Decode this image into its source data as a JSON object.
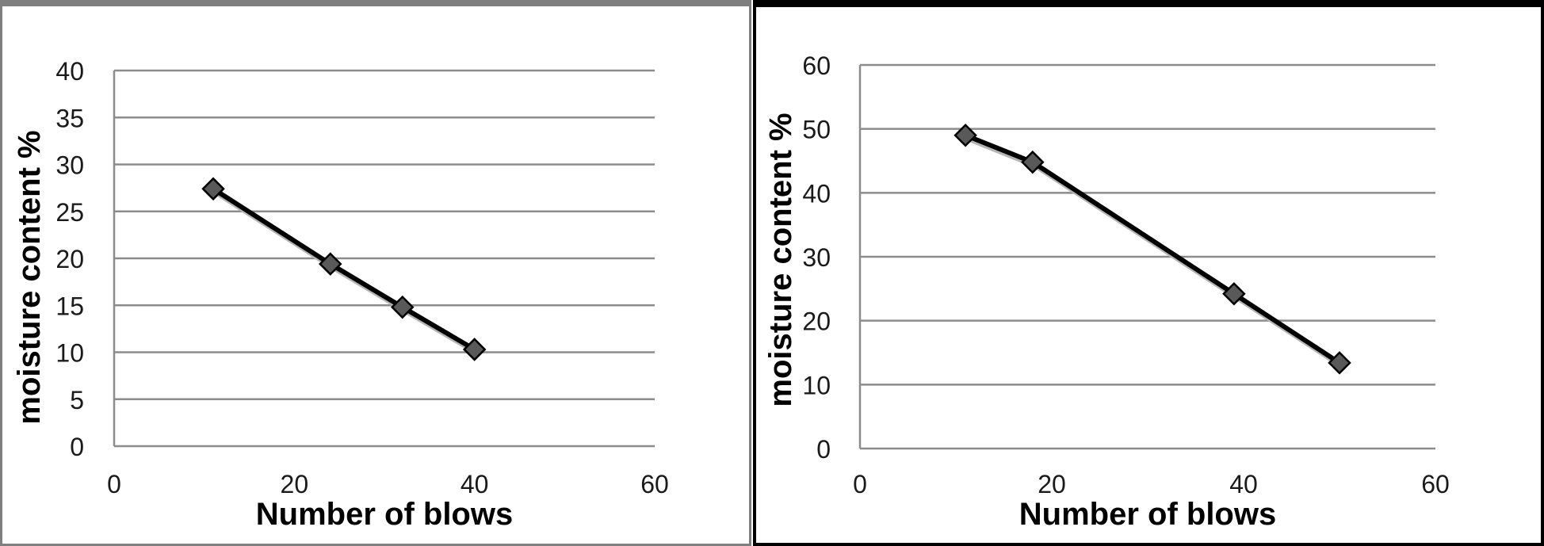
{
  "chart_data": [
    {
      "type": "scatter",
      "mode": "lines+markers",
      "xlabel": "Number of blows",
      "ylabel": "moisture content %",
      "xlim": [
        0,
        60
      ],
      "ylim": [
        0,
        40
      ],
      "xticks": [
        0,
        20,
        40,
        60
      ],
      "yticks": [
        0,
        5,
        10,
        15,
        20,
        25,
        30,
        35,
        40
      ],
      "grid": "horizontal",
      "marker": "diamond",
      "color": "#000000",
      "gridColor": "#8c8c8c",
      "series": [
        {
          "x": [
            11,
            24,
            32,
            40
          ],
          "y": [
            27.4,
            19.4,
            14.8,
            10.3
          ]
        }
      ]
    },
    {
      "type": "scatter",
      "mode": "lines+markers",
      "xlabel": "Number of blows",
      "ylabel": "moisture content %",
      "xlim": [
        0,
        60
      ],
      "ylim": [
        0,
        60
      ],
      "xticks": [
        0,
        20,
        40,
        60
      ],
      "yticks": [
        0,
        10,
        20,
        30,
        40,
        50,
        60
      ],
      "grid": "horizontal",
      "marker": "diamond",
      "color": "#000000",
      "gridColor": "#8c8c8c",
      "series": [
        {
          "x": [
            11,
            18,
            39,
            50
          ],
          "y": [
            49,
            44.8,
            24.2,
            13.4
          ]
        }
      ]
    }
  ]
}
